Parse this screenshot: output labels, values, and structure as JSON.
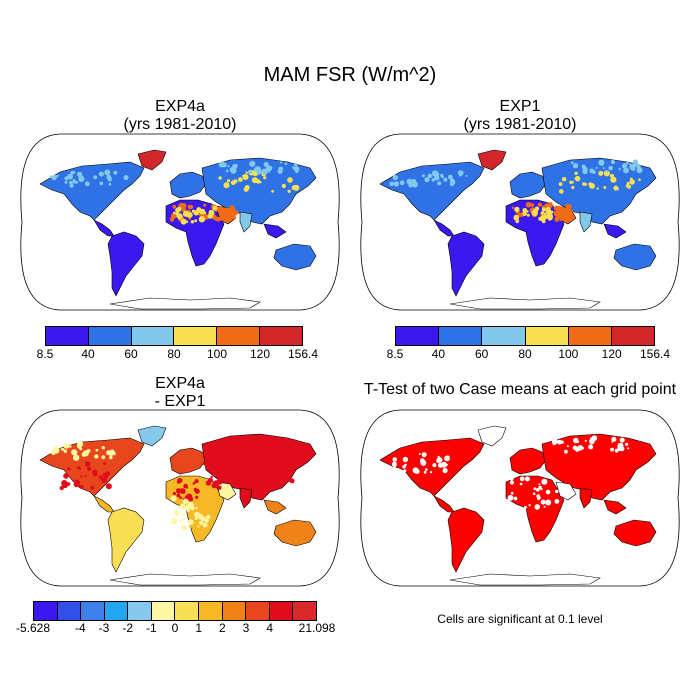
{
  "title": "MAM FSR (W/m^2)",
  "panels": {
    "top_left": {
      "line1": "EXP4a",
      "line2": "(yrs 1981-2010)"
    },
    "top_right": {
      "line1": "EXP1",
      "line2": "(yrs 1981-2010)"
    },
    "bottom_left": {
      "line1": "EXP4a",
      "line2": "- EXP1"
    },
    "bottom_right": {
      "line1": "T-Test of two Case means at each grid point"
    }
  },
  "colorbars": {
    "absolute": {
      "colors": [
        "#3b19ee",
        "#2f72e6",
        "#82c8ec",
        "#f8e150",
        "#f26b16",
        "#d2262a"
      ],
      "labels": [
        "8.5",
        "40",
        "60",
        "80",
        "100",
        "120",
        "156.4"
      ]
    },
    "difference": {
      "colors": [
        "#3b19ee",
        "#3250e8",
        "#3d80ea",
        "#25a4f0",
        "#86c9ec",
        "#fdf6a2",
        "#f8df55",
        "#f6b825",
        "#f08317",
        "#e8461d",
        "#e00c1c",
        "#d82a2b"
      ],
      "labels": [
        "-5.628",
        "-4",
        "-3",
        "-2",
        "-1",
        "0",
        "1",
        "2",
        "3",
        "4",
        "21.098"
      ],
      "label_positions": [
        0,
        2,
        3,
        4,
        5,
        6,
        7,
        8,
        9,
        10,
        12
      ]
    }
  },
  "significance_note": "Cells are significant at 0.1 level",
  "significance_color": "#ff0000"
}
